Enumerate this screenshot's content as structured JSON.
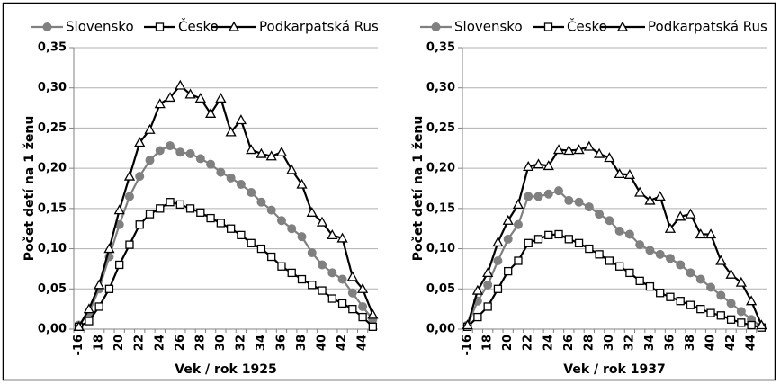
{
  "chart_data": [
    {
      "type": "line",
      "xlabel": "Vek / rok 1925",
      "ylabel": "Počet detí na 1 ženu",
      "categories": [
        "-16",
        null,
        "18",
        null,
        "20",
        null,
        "22",
        null,
        "24",
        null,
        "26",
        null,
        "28",
        null,
        "30",
        null,
        "32",
        null,
        "34",
        null,
        "36",
        null,
        "38",
        null,
        "40",
        null,
        "42",
        null,
        "44",
        null
      ],
      "ylim": [
        0,
        0.35
      ],
      "yticks": [
        {
          "value": 0,
          "label": "0,00"
        },
        {
          "value": 0.05,
          "label": "0,05"
        },
        {
          "value": 0.1,
          "label": "0,10"
        },
        {
          "value": 0.15,
          "label": "0,15"
        },
        {
          "value": 0.2,
          "label": "0,20"
        },
        {
          "value": 0.25,
          "label": "0,25"
        },
        {
          "value": 0.3,
          "label": "0,30"
        },
        {
          "value": 0.35,
          "label": "0,35"
        }
      ],
      "grid": true,
      "legend": "top",
      "series": [
        {
          "name": "Slovensko",
          "color": "#808080",
          "marker": "circle",
          "values": [
            0.005,
            0.02,
            0.05,
            0.09,
            0.13,
            0.165,
            0.19,
            0.21,
            0.222,
            0.228,
            0.22,
            0.218,
            0.212,
            0.205,
            0.195,
            0.188,
            0.18,
            0.17,
            0.158,
            0.148,
            0.135,
            0.125,
            0.115,
            0.095,
            0.08,
            0.07,
            0.062,
            0.045,
            0.028,
            0.012
          ]
        },
        {
          "name": "Česko",
          "color": "#000000",
          "marker": "square",
          "values": [
            0.003,
            0.01,
            0.028,
            0.05,
            0.08,
            0.105,
            0.13,
            0.143,
            0.15,
            0.158,
            0.155,
            0.15,
            0.145,
            0.138,
            0.132,
            0.125,
            0.117,
            0.107,
            0.1,
            0.09,
            0.078,
            0.07,
            0.062,
            0.055,
            0.048,
            0.038,
            0.032,
            0.025,
            0.015,
            0.003
          ]
        },
        {
          "name": "Podkarpatská Rus",
          "color": "#000000",
          "marker": "triangle",
          "values": [
            0.003,
            0.025,
            0.055,
            0.1,
            0.148,
            0.19,
            0.232,
            0.248,
            0.28,
            0.288,
            0.303,
            0.292,
            0.287,
            0.268,
            0.287,
            0.245,
            0.26,
            0.223,
            0.218,
            0.215,
            0.22,
            0.198,
            0.18,
            0.145,
            0.133,
            0.117,
            0.113,
            0.065,
            0.05,
            0.018
          ]
        }
      ]
    },
    {
      "type": "line",
      "xlabel": "Vek / rok 1937",
      "ylabel": "Počet detí na 1 ženu",
      "categories": [
        "-16",
        null,
        "18",
        null,
        "20",
        null,
        "22",
        null,
        "24",
        null,
        "26",
        null,
        "28",
        null,
        "30",
        null,
        "32",
        null,
        "34",
        null,
        "36",
        null,
        "38",
        null,
        "40",
        null,
        "42",
        null,
        "44",
        null
      ],
      "ylim": [
        0,
        0.35
      ],
      "yticks": [
        {
          "value": 0,
          "label": "0,00"
        },
        {
          "value": 0.05,
          "label": "0,05"
        },
        {
          "value": 0.1,
          "label": "0,10"
        },
        {
          "value": 0.15,
          "label": "0,15"
        },
        {
          "value": 0.2,
          "label": "0,20"
        },
        {
          "value": 0.25,
          "label": "0,25"
        },
        {
          "value": 0.3,
          "label": "0,30"
        },
        {
          "value": 0.35,
          "label": "0,35"
        }
      ],
      "grid": true,
      "legend": "top",
      "series": [
        {
          "name": "Slovensko",
          "color": "#808080",
          "marker": "circle",
          "values": [
            0.005,
            0.035,
            0.055,
            0.085,
            0.112,
            0.13,
            0.165,
            0.165,
            0.168,
            0.172,
            0.16,
            0.158,
            0.152,
            0.143,
            0.135,
            0.122,
            0.118,
            0.105,
            0.098,
            0.093,
            0.088,
            0.08,
            0.07,
            0.062,
            0.052,
            0.042,
            0.032,
            0.022,
            0.012,
            0.003
          ]
        },
        {
          "name": "Česko",
          "color": "#000000",
          "marker": "square",
          "values": [
            0.003,
            0.015,
            0.028,
            0.05,
            0.072,
            0.085,
            0.107,
            0.112,
            0.117,
            0.118,
            0.112,
            0.107,
            0.1,
            0.093,
            0.085,
            0.078,
            0.07,
            0.06,
            0.053,
            0.045,
            0.04,
            0.035,
            0.03,
            0.025,
            0.02,
            0.017,
            0.012,
            0.008,
            0.005,
            0.002
          ]
        },
        {
          "name": "Podkarpatská Rus",
          "color": "#000000",
          "marker": "triangle",
          "values": [
            0.005,
            0.048,
            0.07,
            0.108,
            0.135,
            0.155,
            0.202,
            0.205,
            0.203,
            0.223,
            0.222,
            0.223,
            0.227,
            0.218,
            0.213,
            0.193,
            0.192,
            0.17,
            0.16,
            0.165,
            0.125,
            0.14,
            0.143,
            0.118,
            0.118,
            0.085,
            0.068,
            0.058,
            0.035,
            0.005
          ]
        }
      ]
    }
  ]
}
